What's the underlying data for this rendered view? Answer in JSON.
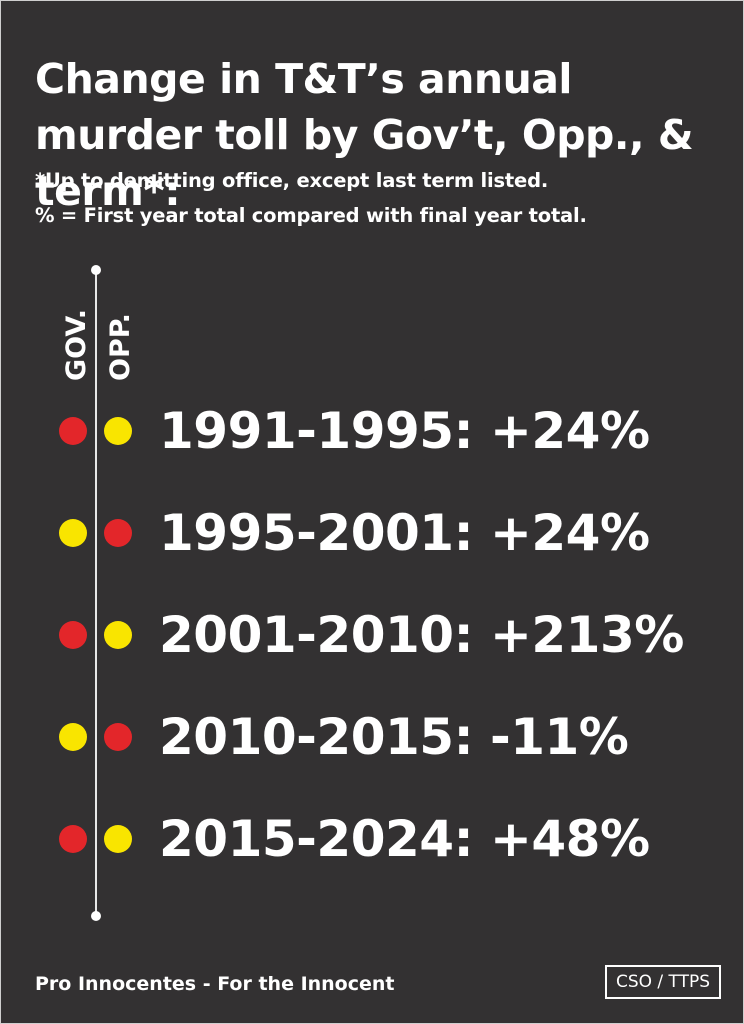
{
  "title": "Change in T&T’s annual murder toll by Gov’t, Opp., & term*:",
  "notes": [
    "*Up to demitting office, except last term listed.",
    "% = First year total compared with final year total."
  ],
  "column_labels": {
    "gov": "GOV.",
    "opp": "OPP."
  },
  "colors": {
    "background": "#333132",
    "text": "#ffffff",
    "red": "#e3262a",
    "yellow": "#f9e500"
  },
  "chart_data": {
    "type": "table",
    "title": "Change in T&T’s annual murder toll by Gov’t, Opp., & term*:",
    "columns": [
      "GOV.",
      "OPP."
    ],
    "rows": [
      {
        "label": "1991-1995: +24%",
        "term": "1991-1995",
        "change_pct": 24,
        "gov": "red",
        "opp": "yellow"
      },
      {
        "label": "1995-2001: +24%",
        "term": "1995-2001",
        "change_pct": 24,
        "gov": "yellow",
        "opp": "red"
      },
      {
        "label": "2001-2010: +213%",
        "term": "2001-2010",
        "change_pct": 213,
        "gov": "red",
        "opp": "yellow"
      },
      {
        "label": "2010-2015: -11%",
        "term": "2010-2015",
        "change_pct": -11,
        "gov": "yellow",
        "opp": "red"
      },
      {
        "label": "2015-2024: +48%",
        "term": "2015-2024",
        "change_pct": 48,
        "gov": "red",
        "opp": "yellow"
      }
    ]
  },
  "footer": {
    "tagline": "Pro Innocentes - For the Innocent",
    "source": "CSO / TTPS"
  }
}
